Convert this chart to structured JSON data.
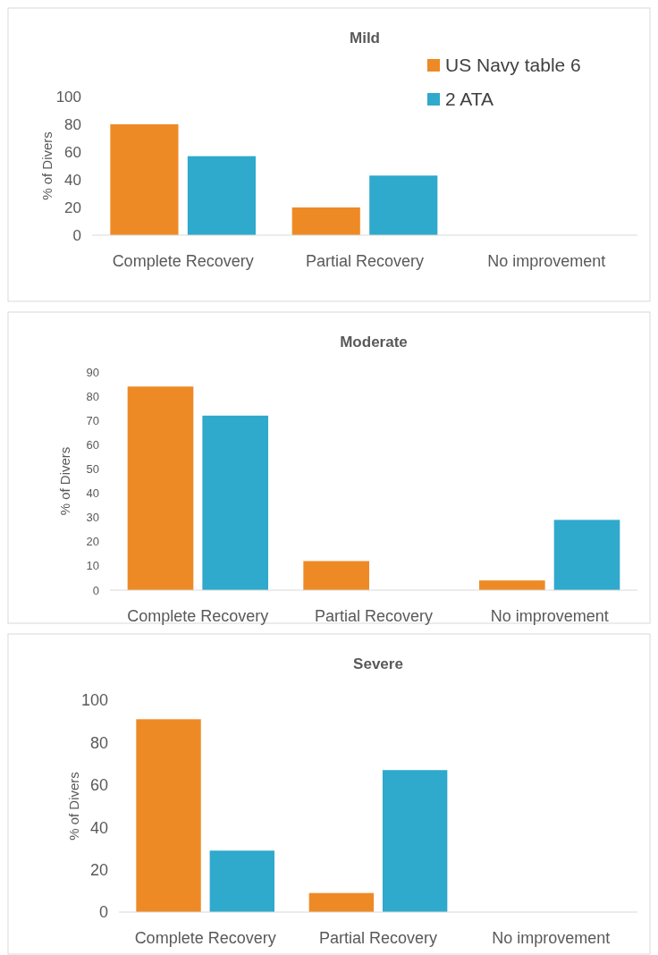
{
  "chart_data": [
    {
      "type": "bar",
      "title": "Mild",
      "ylabel": "% of Divers",
      "categories": [
        "Complete Recovery",
        "Partial Recovery",
        "No improvement"
      ],
      "series": [
        {
          "name": "US Navy table 6",
          "color": "#ee8a25",
          "values": [
            80,
            20,
            0
          ]
        },
        {
          "name": "2 ATA",
          "color": "#2fa9cc",
          "values": [
            57,
            43,
            0
          ]
        }
      ],
      "ylim": [
        0,
        100
      ],
      "yticks": [
        0,
        20,
        40,
        60,
        80,
        100
      ],
      "legend": "top right"
    },
    {
      "type": "bar",
      "title": "Moderate",
      "ylabel": "% of Divers",
      "categories": [
        "Complete Recovery",
        "Partial Recovery",
        "No improvement"
      ],
      "series": [
        {
          "color": "#ee8a25",
          "values": [
            84,
            12,
            4
          ]
        },
        {
          "color": "#2fa9cc",
          "values": [
            72,
            0,
            29
          ]
        }
      ],
      "ylim": [
        0,
        90
      ],
      "yticks": [
        0,
        10,
        20,
        30,
        40,
        50,
        60,
        70,
        80,
        90
      ]
    },
    {
      "type": "bar",
      "title": "Severe",
      "ylabel": "% of Divers",
      "categories": [
        "Complete Recovery",
        "Partial Recovery",
        "No improvement"
      ],
      "series": [
        {
          "color": "#ee8a25",
          "values": [
            91,
            9,
            0
          ]
        },
        {
          "color": "#2fa9cc",
          "values": [
            29,
            67,
            0
          ]
        }
      ],
      "ylim": [
        0,
        100
      ],
      "yticks": [
        0,
        20,
        40,
        60,
        80,
        100
      ]
    }
  ]
}
